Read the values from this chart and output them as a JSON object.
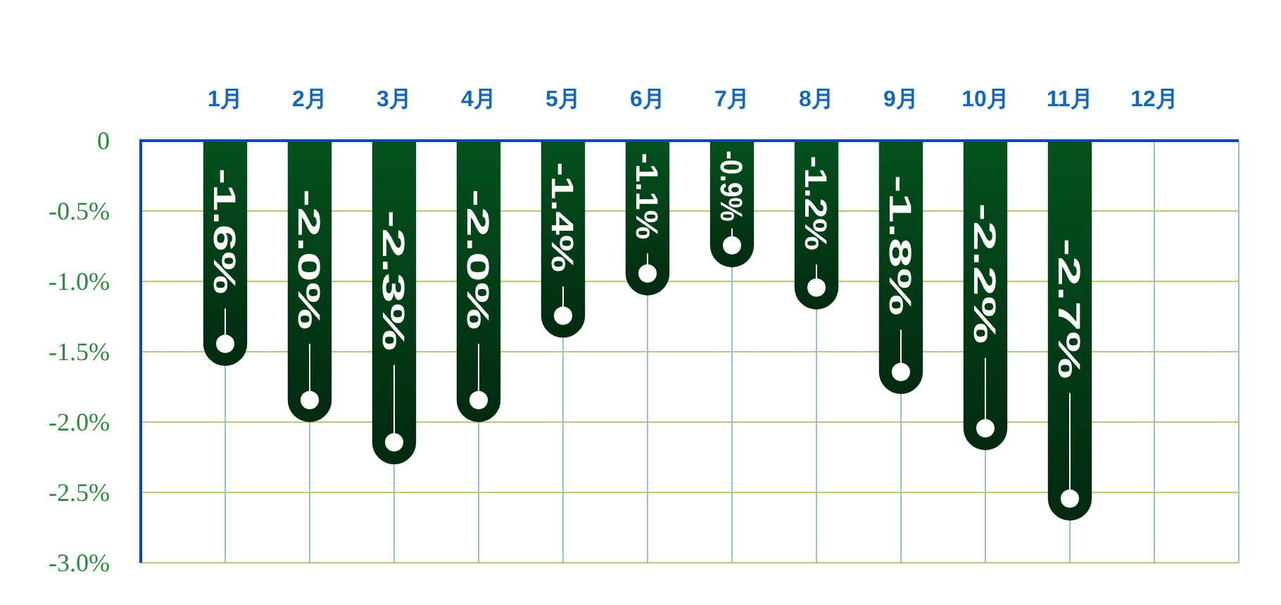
{
  "chart_data": {
    "type": "bar",
    "categories": [
      "1月",
      "2月",
      "3月",
      "4月",
      "5月",
      "6月",
      "7月",
      "8月",
      "9月",
      "10月",
      "11月",
      "12月"
    ],
    "values": [
      -1.6,
      -2.0,
      -2.3,
      -2.0,
      -1.4,
      -1.1,
      -0.9,
      -1.2,
      -1.8,
      -2.2,
      -2.7,
      null
    ],
    "value_labels": [
      "-1.6%",
      "-2.0%",
      "-2.3%",
      "-2.0%",
      "-1.4%",
      "-1.1%",
      "-0.9%",
      "-1.2%",
      "-1.8%",
      "-2.2%",
      "-2.7%",
      null
    ],
    "color": "#04521e",
    "ylim": [
      -3,
      0
    ],
    "yticks": [
      0,
      {
        "value": -0.5,
        "label": "-0.5%"
      },
      {
        "value": -1.0,
        "label": "-1.0%"
      },
      {
        "value": -1.5,
        "label": "-1.5%"
      },
      {
        "value": -2.0,
        "label": "-2.0%"
      },
      {
        "value": -2.5,
        "label": "-2.5%"
      },
      {
        "value": -3.0,
        "label": "-3.0%"
      }
    ],
    "grid": true
  }
}
